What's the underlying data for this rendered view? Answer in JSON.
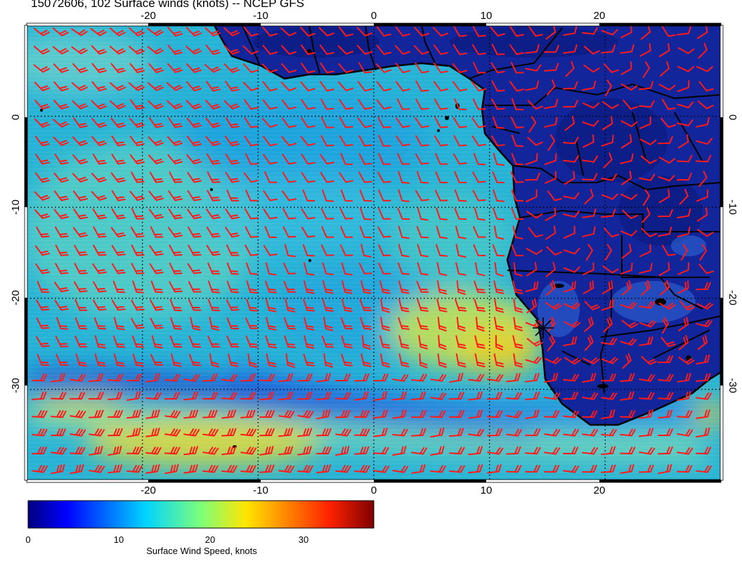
{
  "title": "15072606, 102 Surface winds (knots) -- NCEP GFS",
  "map": {
    "lon_range": [
      -30,
      30
    ],
    "lat_range": [
      -40,
      10
    ],
    "graticule_step": 10,
    "top_ticks": [
      "-20",
      "-10",
      "0",
      "10",
      "20"
    ],
    "bottom_ticks": [
      "-20",
      "-10",
      "0",
      "10",
      "20"
    ],
    "left_ticks": [
      "0",
      "-10",
      "-20",
      "-30"
    ],
    "right_ticks": [
      "0",
      "-10",
      "-20",
      "-30"
    ],
    "marker": {
      "symbol": "asterisk",
      "lon": 15,
      "lat": -24
    },
    "colors": {
      "land_outline": "#000000",
      "barbs": "#ff1a1a",
      "grid": "#000000"
    }
  },
  "colorbar": {
    "min": 0,
    "max": 38,
    "ticks": [
      "0",
      "10",
      "20",
      "30"
    ],
    "label": "Surface Wind Speed, knots",
    "colormap": "jet"
  }
}
